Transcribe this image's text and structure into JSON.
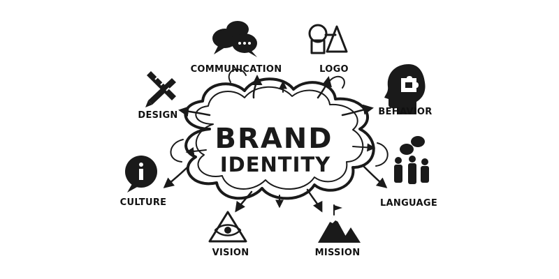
{
  "center": {
    "line1": "BRAND",
    "line2": "IDENTITY"
  },
  "nodes": [
    {
      "id": "communication",
      "label": "COMMUNICATION",
      "icon": "speech-bubbles-icon"
    },
    {
      "id": "logo",
      "label": "LOGO",
      "icon": "shapes-icon"
    },
    {
      "id": "behavior",
      "label": "BEHAVIOR",
      "icon": "head-puzzle-icon"
    },
    {
      "id": "language",
      "label": "LANGUAGE",
      "icon": "people-talking-icon"
    },
    {
      "id": "mission",
      "label": "MISSION",
      "icon": "mountain-flag-icon"
    },
    {
      "id": "vision",
      "label": "VISION",
      "icon": "eye-pyramid-icon"
    },
    {
      "id": "culture",
      "label": "CULTURE",
      "icon": "info-bubble-icon"
    },
    {
      "id": "design",
      "label": "DESIGN",
      "icon": "pencil-ruler-icon"
    }
  ],
  "colors": {
    "ink": "#1a1a1a",
    "background": "#ffffff"
  }
}
